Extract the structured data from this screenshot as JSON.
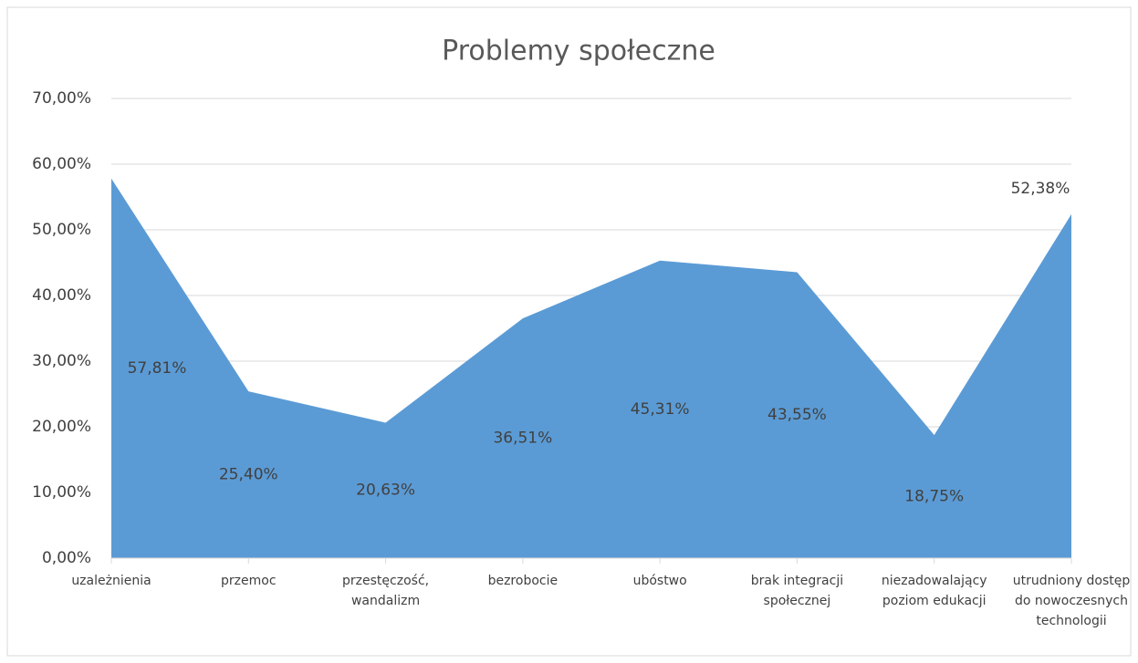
{
  "chart_data": {
    "type": "area",
    "title": "Problemy społeczne",
    "categories": [
      "uzależnienia",
      "przemoc",
      "przestęczość, wandalizm",
      "bezrobocie",
      "ubóstwo",
      "brak integracji społecznej",
      "niezadowalający poziom edukacji",
      "utrudniony dostęp do nowoczesnych technologii"
    ],
    "values": [
      57.81,
      25.4,
      20.63,
      36.51,
      45.31,
      43.55,
      18.75,
      52.38
    ],
    "value_labels": [
      "57,81%",
      "25,40%",
      "20,63%",
      "36,51%",
      "45,31%",
      "43,55%",
      "18,75%",
      "52,38%"
    ],
    "color": "#5b9bd5",
    "ylim": [
      0,
      70
    ],
    "yticks": [
      {
        "value": 0,
        "label": "0,00%"
      },
      {
        "value": 10,
        "label": "10,00%"
      },
      {
        "value": 20,
        "label": "20,00%"
      },
      {
        "value": 30,
        "label": "30,00%"
      },
      {
        "value": 40,
        "label": "40,00%"
      },
      {
        "value": 50,
        "label": "50,00%"
      },
      {
        "value": 60,
        "label": "60,00%"
      },
      {
        "value": 70,
        "label": "70,00%"
      }
    ],
    "grid": true
  }
}
